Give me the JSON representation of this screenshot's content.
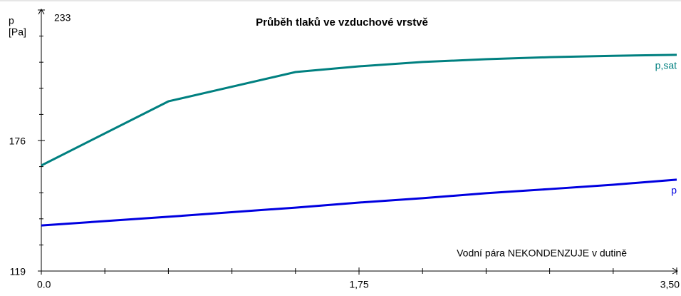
{
  "chart_data": {
    "type": "line",
    "title": "Průběh tlaků ve vzduchové vrstvě",
    "y_label": [
      "p",
      "[Pa]"
    ],
    "annotation": "Vodní pára NEKONDENZUJE v dutině",
    "x": [
      0,
      0.7,
      1.4,
      1.75,
      2.1,
      2.45,
      2.8,
      3.15,
      3.5
    ],
    "series": [
      {
        "name": "p,sat",
        "color": "#008080",
        "values": [
          165.1,
          193.1,
          205.9,
          208.4,
          210.3,
          211.5,
          212.4,
          213.0,
          213.4
        ]
      },
      {
        "name": "p",
        "color": "#0000e0",
        "values": [
          138.9,
          142.7,
          146.7,
          148.9,
          150.8,
          153.0,
          154.8,
          156.7,
          158.9
        ]
      }
    ],
    "xlim": [
      0,
      3.5
    ],
    "xticks": [
      {
        "value": 0,
        "label": "0.0"
      },
      {
        "value": 1.75,
        "label": "1,75"
      },
      {
        "value": 3.5,
        "label": "3,50"
      }
    ],
    "xticks_minor": [
      0.35,
      0.7,
      1.05,
      1.4,
      2.1,
      2.45,
      2.8,
      3.15
    ],
    "ylim": [
      119,
      233
    ],
    "yticks": [
      119,
      176,
      233
    ],
    "yticks_minor": [
      130.4,
      141.8,
      153.2,
      164.6,
      187.4,
      198.8,
      210.2,
      221.6
    ]
  }
}
